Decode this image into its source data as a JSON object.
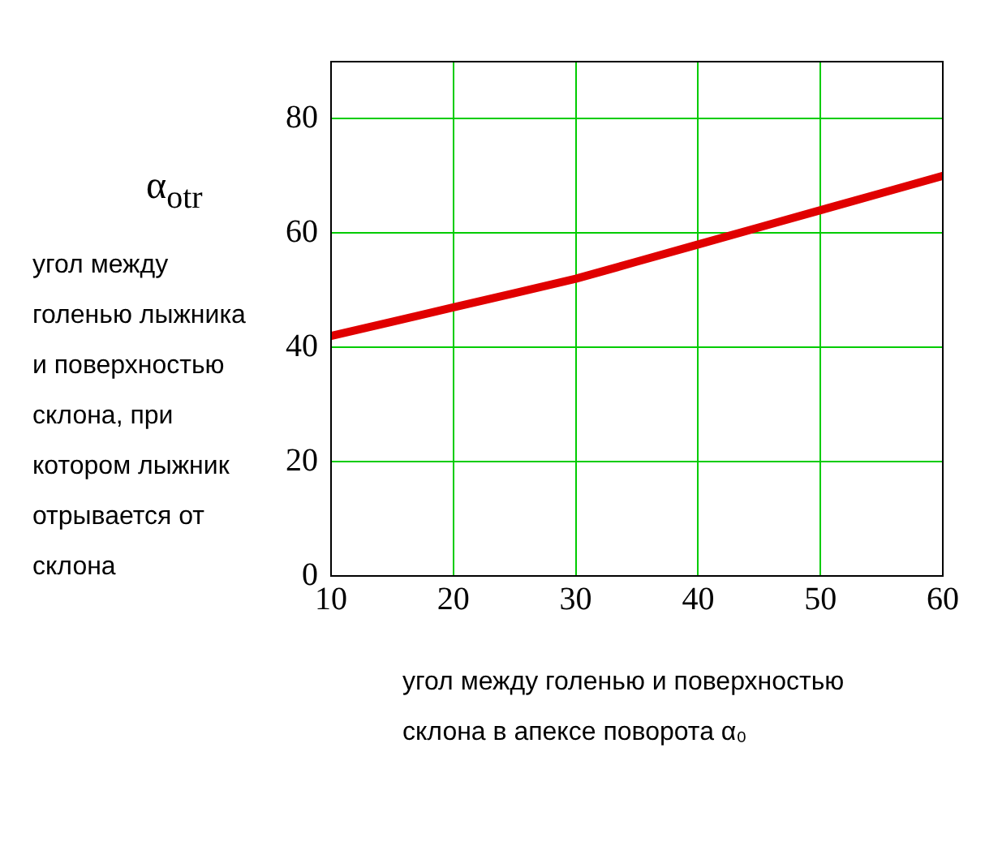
{
  "chart_data": {
    "type": "line",
    "ylabel": "α$_{otr}$",
    "annotations": [
      "угол между голенью лыжника и поверхностью склона, при котором лыжник отрывается от склона"
    ],
    "xlabel": "угол между голенью и поверхностью склона в апексе поворота α₀",
    "x": [
      10,
      15,
      20,
      25,
      30,
      35,
      40,
      45,
      50,
      55,
      60
    ],
    "series": [
      {
        "color": "#e00000",
        "values": [
          42,
          44.5,
          47,
          49.5,
          52,
          55,
          58,
          61,
          64,
          67,
          70
        ]
      }
    ],
    "xlim": [
      10,
      60
    ],
    "xticks": [
      10,
      20,
      30,
      40,
      50,
      60
    ],
    "ylim": [
      0,
      90
    ],
    "yticks": [
      0,
      20,
      40,
      60,
      80
    ],
    "grid": true,
    "legend": false,
    "marker": "none",
    "line_style": "solid"
  }
}
